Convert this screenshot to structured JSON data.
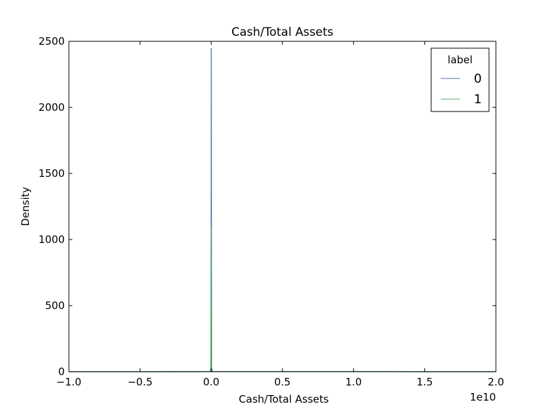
{
  "chart_data": {
    "type": "line",
    "title": "Cash/Total Assets",
    "xlabel": "Cash/Total Assets",
    "ylabel": "Density",
    "x_offset_label": "1e10",
    "xlim": [
      -1.0,
      2.0
    ],
    "ylim": [
      0,
      2500
    ],
    "xticks": [
      -1.0,
      -0.5,
      0.0,
      0.5,
      1.0,
      1.5,
      2.0
    ],
    "xtick_labels": [
      "−1.0",
      "−0.5",
      "0.0",
      "0.5",
      "1.0",
      "1.5",
      "2.0"
    ],
    "yticks": [
      0,
      500,
      1000,
      1500,
      2000,
      2500
    ],
    "ytick_labels": [
      "0",
      "500",
      "1000",
      "1500",
      "2000",
      "2500"
    ],
    "grid": false,
    "legend": {
      "title": "label",
      "position": "top-right"
    },
    "series": [
      {
        "name": "0",
        "color": "#4c72b0",
        "x": [
          -1.0,
          -0.5,
          -0.01,
          -0.003,
          -0.0005,
          0.0,
          0.0005,
          0.003,
          0.01,
          0.5,
          1.0,
          1.25,
          1.5,
          2.0
        ],
        "y": [
          0,
          0,
          0.5,
          10,
          1400,
          2445,
          2020,
          20,
          2,
          1,
          1,
          0.5,
          0,
          0
        ]
      },
      {
        "name": "1",
        "color": "#55a868",
        "x": [
          -1.0,
          -0.5,
          -0.01,
          -0.003,
          0.0,
          0.003,
          0.01,
          0.5,
          1.0,
          1.25,
          1.5,
          2.0
        ],
        "y": [
          0,
          0,
          0.5,
          5,
          1100,
          5,
          1,
          1,
          1,
          0.5,
          0,
          0
        ]
      }
    ]
  }
}
